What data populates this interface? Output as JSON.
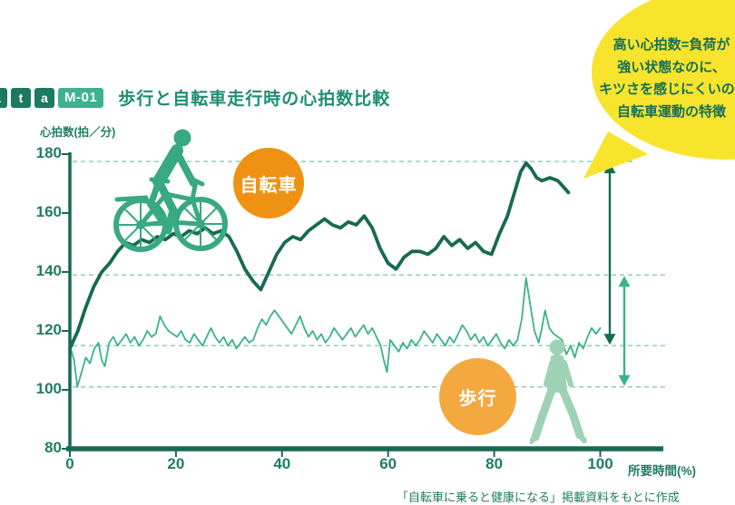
{
  "header": {
    "series_letters": [
      "a",
      "t",
      "a"
    ],
    "code": "M-01"
  },
  "bubble": {
    "lines": [
      "高い心拍数=負荷が",
      "強い状態なのに、",
      "キツさを感じにくいのが",
      "自転車運動の特徴"
    ]
  },
  "badges": {
    "bicycle": "自転車",
    "walking": "歩行"
  },
  "source_note": "「自転車に乗ると健康になる」掲載資料をもとに作成",
  "chart_data": {
    "type": "line",
    "title": "歩行と自転車走行時の心拍数比較",
    "ylabel": "心拍数(拍／分)",
    "xlabel": "所要時間(%)",
    "ylim": [
      80,
      180
    ],
    "xlim": [
      0,
      100
    ],
    "yticks": [
      180,
      160,
      140,
      120,
      100,
      80
    ],
    "xticks": [
      0,
      20,
      40,
      60,
      80,
      100
    ],
    "grid": "dashed horizontal guides at key levels",
    "dashed_guides": [
      {
        "y": 177.5,
        "x_end": 697
      },
      {
        "y": 139,
        "x_end": 734
      },
      {
        "y": 115,
        "x_end": 734
      },
      {
        "y": 101,
        "x_end": 734
      }
    ],
    "range_arrows": [
      {
        "name": "bicycle-heart-rate-range",
        "x": 672,
        "from": 177.5,
        "to": 115,
        "color_key": "bicycle_line"
      },
      {
        "name": "walking-heart-rate-range",
        "x": 688,
        "from": 139,
        "to": 101,
        "color_key": "walking_line"
      }
    ],
    "series": [
      {
        "name": "歩行",
        "color_key": "walking_line",
        "width": 1.8,
        "points": [
          [
            0,
            115
          ],
          [
            0.8,
            110
          ],
          [
            1.4,
            101
          ],
          [
            2.2,
            106
          ],
          [
            3,
            111
          ],
          [
            3.8,
            109
          ],
          [
            4.6,
            114
          ],
          [
            5.4,
            116
          ],
          [
            6,
            110
          ],
          [
            6.6,
            108
          ],
          [
            7.4,
            116
          ],
          [
            8.2,
            118
          ],
          [
            9,
            115
          ],
          [
            9.8,
            117
          ],
          [
            10.6,
            119
          ],
          [
            11.4,
            116
          ],
          [
            12.2,
            118
          ],
          [
            13,
            115
          ],
          [
            13.8,
            117
          ],
          [
            14.6,
            120
          ],
          [
            15.4,
            118
          ],
          [
            16.2,
            119
          ],
          [
            17,
            125
          ],
          [
            17.8,
            122
          ],
          [
            18.6,
            120
          ],
          [
            19.4,
            119
          ],
          [
            20.2,
            118
          ],
          [
            21,
            120
          ],
          [
            21.8,
            117
          ],
          [
            22.6,
            116
          ],
          [
            23.4,
            119
          ],
          [
            24.2,
            117
          ],
          [
            25,
            115
          ],
          [
            25.8,
            118
          ],
          [
            26.6,
            121
          ],
          [
            27.4,
            118
          ],
          [
            28.2,
            116
          ],
          [
            29,
            118
          ],
          [
            29.8,
            115
          ],
          [
            30.6,
            117
          ],
          [
            31.4,
            114
          ],
          [
            32.2,
            116
          ],
          [
            33,
            118
          ],
          [
            33.8,
            116
          ],
          [
            34.6,
            117
          ],
          [
            35.4,
            121
          ],
          [
            36.2,
            124
          ],
          [
            37,
            122
          ],
          [
            37.8,
            125
          ],
          [
            38.6,
            127
          ],
          [
            39.4,
            125
          ],
          [
            40.2,
            123
          ],
          [
            41,
            121
          ],
          [
            41.8,
            119
          ],
          [
            42.6,
            122
          ],
          [
            43.4,
            125
          ],
          [
            44.2,
            121
          ],
          [
            45,
            118
          ],
          [
            45.8,
            120
          ],
          [
            46.6,
            117
          ],
          [
            47.4,
            119
          ],
          [
            48.2,
            116
          ],
          [
            49,
            118
          ],
          [
            49.8,
            121
          ],
          [
            50.6,
            119
          ],
          [
            51.4,
            117
          ],
          [
            52.2,
            119
          ],
          [
            53,
            121
          ],
          [
            53.8,
            118
          ],
          [
            54.6,
            120
          ],
          [
            55.4,
            122
          ],
          [
            56.2,
            119
          ],
          [
            57,
            121
          ],
          [
            57.8,
            118
          ],
          [
            58.6,
            115
          ],
          [
            59.2,
            110
          ],
          [
            59.8,
            106
          ],
          [
            60.4,
            117
          ],
          [
            61.2,
            115
          ],
          [
            62,
            113
          ],
          [
            62.8,
            116
          ],
          [
            63.6,
            114
          ],
          [
            64.4,
            117
          ],
          [
            65.2,
            115
          ],
          [
            66,
            117
          ],
          [
            66.8,
            120
          ],
          [
            67.6,
            118
          ],
          [
            68.4,
            116
          ],
          [
            69.2,
            119
          ],
          [
            70,
            117
          ],
          [
            70.8,
            115
          ],
          [
            71.6,
            118
          ],
          [
            72.4,
            116
          ],
          [
            73.2,
            119
          ],
          [
            74,
            122
          ],
          [
            74.8,
            120
          ],
          [
            75.6,
            117
          ],
          [
            76.4,
            119
          ],
          [
            77.2,
            116
          ],
          [
            78,
            118
          ],
          [
            78.8,
            115
          ],
          [
            79.6,
            117
          ],
          [
            80.4,
            119
          ],
          [
            81.2,
            116
          ],
          [
            82,
            114
          ],
          [
            82.8,
            117
          ],
          [
            83.6,
            115
          ],
          [
            84.4,
            117
          ],
          [
            85.2,
            124
          ],
          [
            86,
            138
          ],
          [
            86.8,
            129
          ],
          [
            87.6,
            120
          ],
          [
            88.4,
            116
          ],
          [
            89,
            121
          ],
          [
            89.6,
            127
          ],
          [
            90.4,
            121
          ],
          [
            91.2,
            119
          ],
          [
            92,
            118
          ],
          [
            92.8,
            117
          ],
          [
            93.6,
            112
          ],
          [
            94.4,
            115
          ],
          [
            95.2,
            111
          ],
          [
            96,
            116
          ],
          [
            96.8,
            114
          ],
          [
            97.6,
            118
          ],
          [
            98.4,
            121
          ],
          [
            99.2,
            119
          ],
          [
            100,
            121
          ]
        ]
      },
      {
        "name": "自転車",
        "color_key": "bicycle_line",
        "width": 3.8,
        "points": [
          [
            0,
            114
          ],
          [
            1.5,
            120
          ],
          [
            3,
            128
          ],
          [
            4.5,
            135
          ],
          [
            6,
            140
          ],
          [
            7.5,
            143
          ],
          [
            9,
            147
          ],
          [
            10.5,
            150
          ],
          [
            12,
            149
          ],
          [
            13.5,
            151
          ],
          [
            15,
            150
          ],
          [
            16.5,
            152
          ],
          [
            18,
            151
          ],
          [
            19.5,
            153
          ],
          [
            21,
            152
          ],
          [
            22.5,
            154
          ],
          [
            24,
            153
          ],
          [
            25.5,
            155
          ],
          [
            27,
            153
          ],
          [
            28.5,
            154
          ],
          [
            30,
            152
          ],
          [
            31.5,
            147
          ],
          [
            33,
            141
          ],
          [
            34.5,
            137
          ],
          [
            36,
            134
          ],
          [
            37.5,
            140
          ],
          [
            39,
            146
          ],
          [
            40.5,
            150
          ],
          [
            42,
            152
          ],
          [
            43.5,
            151
          ],
          [
            45,
            154
          ],
          [
            46.5,
            156
          ],
          [
            48,
            158
          ],
          [
            49.5,
            156
          ],
          [
            51,
            155
          ],
          [
            52.5,
            157
          ],
          [
            54,
            156
          ],
          [
            55.5,
            159
          ],
          [
            57,
            155
          ],
          [
            58.5,
            148
          ],
          [
            60,
            143
          ],
          [
            61.5,
            141
          ],
          [
            63,
            145
          ],
          [
            64.5,
            147
          ],
          [
            66,
            147
          ],
          [
            67.5,
            146
          ],
          [
            69,
            148
          ],
          [
            70.5,
            152
          ],
          [
            72,
            149
          ],
          [
            73.5,
            151
          ],
          [
            75,
            148
          ],
          [
            76.5,
            150
          ],
          [
            78,
            147
          ],
          [
            79.5,
            146
          ],
          [
            81,
            153
          ],
          [
            82.5,
            159
          ],
          [
            84,
            168
          ],
          [
            85,
            174
          ],
          [
            86,
            177
          ],
          [
            87,
            175
          ],
          [
            88,
            172
          ],
          [
            89,
            171
          ],
          [
            90.5,
            172
          ],
          [
            92,
            171
          ],
          [
            93,
            169
          ],
          [
            94,
            167
          ]
        ]
      }
    ]
  },
  "colors": {
    "axis": "#176a52",
    "grid": "#93cebb",
    "walking_line": "#3cb28c",
    "bicycle_line": "#176a52",
    "title": "#1f8e72",
    "tick_text": "#1f7d63",
    "letter_box_bg": "#1c7a60",
    "code_box_bg": "#3eb28e",
    "badge_bicycle_bg": "#ef9214",
    "badge_walking_bg": "#f3a93f",
    "bubble_bg": "#f8e42c",
    "bubble_text": "#156f58",
    "cyclist": "#38a981",
    "walker": "#9dd2b4"
  }
}
